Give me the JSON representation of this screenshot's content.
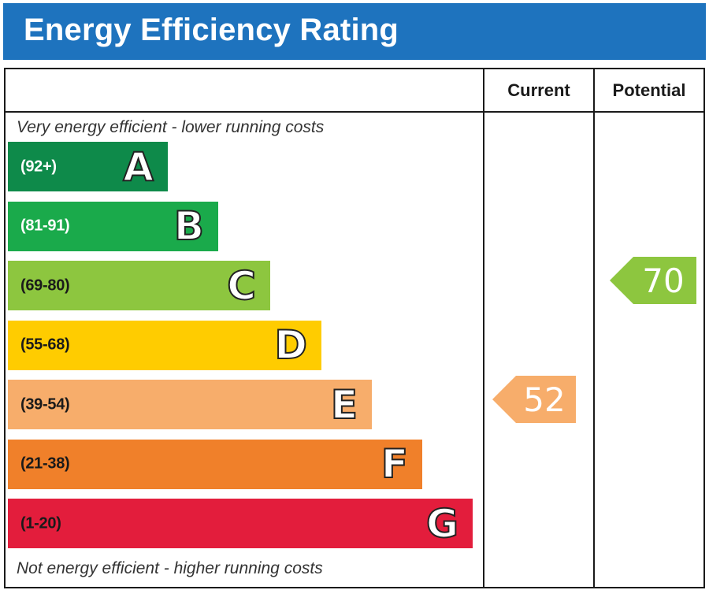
{
  "title": "Energy Efficiency Rating",
  "columns": {
    "current": "Current",
    "potential": "Potential"
  },
  "notes": {
    "top": "Very energy efficient - lower running costs",
    "bottom": "Not energy efficient - higher running costs"
  },
  "chart_data": {
    "type": "bar",
    "title": "Energy Efficiency Rating",
    "categories": [
      "A",
      "B",
      "C",
      "D",
      "E",
      "F",
      "G"
    ],
    "bands": [
      {
        "letter": "A",
        "range": "(92+)",
        "color": "#0e8a4a",
        "text_color": "#ffffff"
      },
      {
        "letter": "B",
        "range": "(81-91)",
        "color": "#1aaa4b",
        "text_color": "#ffffff"
      },
      {
        "letter": "C",
        "range": "(69-80)",
        "color": "#8dc63f",
        "text_color": "#1a1a1a"
      },
      {
        "letter": "D",
        "range": "(55-68)",
        "color": "#ffcc00",
        "text_color": "#1a1a1a"
      },
      {
        "letter": "E",
        "range": "(39-54)",
        "color": "#f7ad6b",
        "text_color": "#1a1a1a"
      },
      {
        "letter": "F",
        "range": "(21-38)",
        "color": "#f0802a",
        "text_color": "#1a1a1a"
      },
      {
        "letter": "G",
        "range": "(1-20)",
        "color": "#e31d3c",
        "text_color": "#1a1a1a"
      }
    ],
    "current": {
      "value": "52",
      "band": "E",
      "color": "#f7ad6b"
    },
    "potential": {
      "value": "70",
      "band": "C",
      "color": "#8dc63f"
    }
  }
}
